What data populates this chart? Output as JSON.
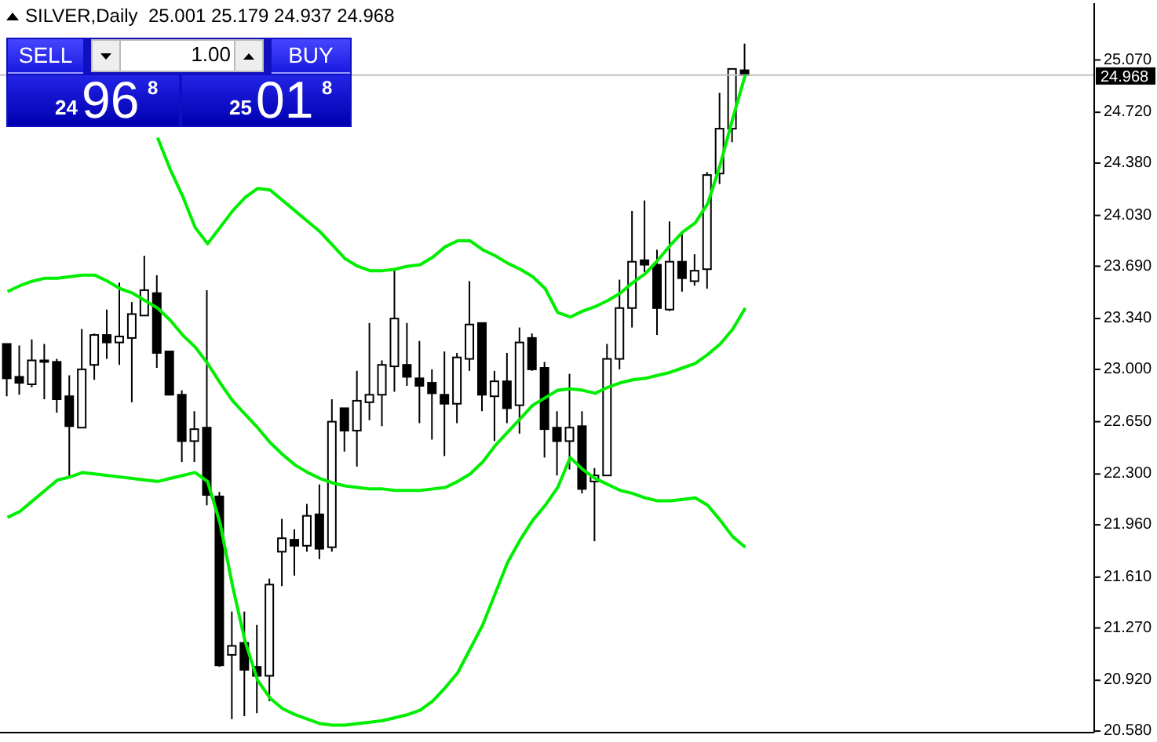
{
  "chart_data": {
    "type": "candlestick",
    "title": "SILVER,Daily  25.001 25.179 24.937 24.968",
    "annotations": [
      "SELL",
      "1.00",
      "BUY",
      "24",
      "96",
      "8",
      "25",
      "01",
      "8"
    ],
    "categories": [
      null,
      null,
      null,
      null,
      null,
      null,
      null,
      null,
      null,
      null,
      null,
      null,
      null,
      null,
      null,
      null,
      null,
      null,
      null,
      null,
      null,
      null,
      null,
      null,
      null,
      null,
      null,
      null,
      null,
      null,
      null,
      null,
      null,
      null,
      null,
      null,
      null,
      null,
      null,
      null,
      null,
      null,
      null,
      null,
      null,
      null,
      null,
      null,
      null,
      null,
      null,
      null,
      null,
      null,
      null,
      null,
      null,
      null,
      null,
      null
    ],
    "ohlc": [
      [
        23.17,
        23.17,
        22.82,
        22.94
      ],
      [
        22.95,
        23.16,
        22.83,
        22.91
      ],
      [
        22.9,
        23.2,
        22.88,
        23.06
      ],
      [
        23.06,
        23.17,
        22.8,
        23.05
      ],
      [
        23.05,
        23.07,
        22.71,
        22.8
      ],
      [
        22.82,
        22.96,
        22.27,
        22.62
      ],
      [
        22.61,
        23.27,
        22.61,
        23.0
      ],
      [
        23.03,
        23.24,
        22.93,
        23.23
      ],
      [
        23.23,
        23.4,
        23.07,
        23.18
      ],
      [
        23.18,
        23.58,
        23.03,
        23.22
      ],
      [
        23.21,
        23.45,
        22.78,
        23.37
      ],
      [
        23.36,
        23.76,
        23.36,
        23.53
      ],
      [
        23.51,
        23.63,
        23.01,
        23.11
      ],
      [
        23.12,
        23.12,
        22.83,
        22.83
      ],
      [
        22.83,
        22.86,
        22.38,
        22.52
      ],
      [
        22.52,
        22.72,
        22.38,
        22.6
      ],
      [
        22.61,
        23.53,
        22.09,
        22.16
      ],
      [
        22.15,
        22.18,
        21.01,
        21.02
      ],
      [
        21.09,
        21.38,
        20.66,
        21.15
      ],
      [
        21.17,
        21.38,
        20.68,
        20.99
      ],
      [
        21.01,
        21.29,
        20.7,
        20.95
      ],
      [
        20.95,
        21.6,
        20.78,
        21.56
      ],
      [
        21.78,
        22.0,
        21.55,
        21.87
      ],
      [
        21.86,
        21.93,
        21.62,
        21.82
      ],
      [
        21.82,
        22.1,
        21.78,
        22.02
      ],
      [
        22.03,
        22.23,
        21.73,
        21.8
      ],
      [
        21.81,
        22.8,
        21.78,
        22.65
      ],
      [
        22.74,
        22.74,
        22.45,
        22.59
      ],
      [
        22.59,
        22.99,
        22.35,
        22.79
      ],
      [
        22.78,
        23.31,
        22.66,
        22.83
      ],
      [
        22.83,
        23.06,
        22.62,
        23.03
      ],
      [
        23.02,
        23.67,
        22.85,
        23.34
      ],
      [
        23.03,
        23.31,
        22.89,
        22.95
      ],
      [
        22.94,
        23.19,
        22.64,
        22.89
      ],
      [
        22.91,
        23.0,
        22.53,
        22.84
      ],
      [
        22.83,
        23.12,
        22.42,
        22.77
      ],
      [
        22.77,
        23.11,
        22.64,
        23.08
      ],
      [
        23.07,
        23.59,
        22.99,
        23.3
      ],
      [
        23.31,
        23.31,
        22.72,
        22.83
      ],
      [
        22.82,
        22.99,
        22.52,
        22.92
      ],
      [
        22.92,
        23.11,
        22.64,
        22.74
      ],
      [
        22.76,
        23.28,
        22.57,
        23.18
      ],
      [
        23.21,
        23.24,
        22.99,
        23.0
      ],
      [
        23.01,
        23.05,
        22.41,
        22.6
      ],
      [
        22.61,
        22.72,
        22.29,
        22.52
      ],
      [
        22.52,
        22.97,
        22.33,
        22.61
      ],
      [
        22.62,
        22.72,
        22.17,
        22.2
      ],
      [
        22.25,
        22.34,
        21.85,
        22.29
      ],
      [
        22.29,
        23.17,
        22.29,
        23.07
      ],
      [
        23.07,
        23.6,
        23.0,
        23.41
      ],
      [
        23.41,
        24.06,
        23.28,
        23.72
      ],
      [
        23.73,
        24.13,
        23.65,
        23.7
      ],
      [
        23.7,
        23.8,
        23.23,
        23.41
      ],
      [
        23.4,
        23.99,
        23.39,
        23.72
      ],
      [
        23.72,
        23.92,
        23.52,
        23.61
      ],
      [
        23.59,
        23.77,
        23.56,
        23.66
      ],
      [
        23.67,
        24.32,
        23.54,
        24.3
      ],
      [
        24.31,
        24.85,
        24.24,
        24.61
      ],
      [
        24.61,
        25.01,
        24.52,
        25.01
      ],
      [
        25.001,
        25.179,
        24.937,
        24.968
      ]
    ],
    "color": "#000000",
    "series": [
      {
        "type": "line",
        "color": "#00ee00",
        "values": [
          null,
          null,
          null,
          null,
          null,
          null,
          null,
          null,
          null,
          null,
          null,
          null,
          24.55,
          24.34,
          24.16,
          23.95,
          23.84,
          23.95,
          24.06,
          24.15,
          24.21,
          24.2,
          24.13,
          24.06,
          23.99,
          23.92,
          23.83,
          23.74,
          23.69,
          23.66,
          23.66,
          23.67,
          23.69,
          23.7,
          23.75,
          23.82,
          23.86,
          23.86,
          23.8,
          23.76,
          23.71,
          23.67,
          23.62,
          23.54,
          23.38,
          23.35,
          23.39,
          23.42,
          23.46,
          23.51,
          23.58,
          23.64,
          23.73,
          23.83,
          23.92,
          23.98,
          24.11,
          24.37,
          24.68,
          24.97
        ]
      },
      {
        "type": "line",
        "color": "#00ee00",
        "values": [
          23.52,
          23.56,
          23.59,
          23.61,
          23.61,
          23.62,
          23.63,
          23.63,
          23.59,
          23.54,
          23.51,
          23.46,
          23.41,
          23.33,
          23.23,
          23.15,
          23.04,
          22.91,
          22.79,
          22.7,
          22.61,
          22.51,
          22.43,
          22.36,
          22.31,
          22.27,
          22.24,
          22.22,
          22.21,
          22.2,
          22.2,
          22.19,
          22.19,
          22.19,
          22.2,
          22.21,
          22.25,
          22.3,
          22.38,
          22.49,
          22.58,
          22.67,
          22.76,
          22.81,
          22.86,
          22.87,
          22.86,
          22.84,
          22.88,
          22.91,
          22.93,
          22.94,
          22.96,
          22.98,
          23.01,
          23.04,
          23.1,
          23.17,
          23.27,
          23.41
        ]
      },
      {
        "type": "line",
        "color": "#00ee00",
        "values": [
          22.01,
          22.05,
          22.12,
          22.19,
          22.26,
          22.28,
          22.31,
          22.3,
          22.29,
          22.28,
          22.27,
          22.26,
          22.25,
          22.27,
          22.29,
          22.31,
          22.25,
          21.97,
          21.55,
          21.18,
          20.92,
          20.8,
          20.73,
          20.69,
          20.66,
          20.63,
          20.62,
          20.62,
          20.63,
          20.64,
          20.65,
          20.67,
          20.69,
          20.72,
          20.78,
          20.87,
          20.97,
          21.13,
          21.29,
          21.5,
          21.71,
          21.86,
          21.99,
          22.09,
          22.21,
          22.41,
          22.33,
          22.27,
          22.23,
          22.19,
          22.17,
          22.14,
          22.12,
          22.12,
          22.13,
          22.14,
          22.09,
          21.99,
          21.88,
          21.81
        ]
      }
    ],
    "ylim": [
      20.57,
      25.45
    ],
    "yticks": [
      {
        "value": 25.07,
        "label": "25.070"
      },
      {
        "value": 24.72,
        "label": "24.720"
      },
      {
        "value": 24.38,
        "label": "24.380"
      },
      {
        "value": 24.03,
        "label": "24.030"
      },
      {
        "value": 23.69,
        "label": "23.690"
      },
      {
        "value": 23.34,
        "label": "23.340"
      },
      {
        "value": 23.0,
        "label": "23.000"
      },
      {
        "value": 22.65,
        "label": "22.650"
      },
      {
        "value": 22.3,
        "label": "22.300"
      },
      {
        "value": 21.96,
        "label": "21.960"
      },
      {
        "value": 21.61,
        "label": "21.610"
      },
      {
        "value": 21.27,
        "label": "21.270"
      },
      {
        "value": 20.92,
        "label": "20.920"
      },
      {
        "value": 20.58,
        "label": "20.580"
      }
    ],
    "ref_lines": [
      {
        "axis": "y",
        "value": 24.968,
        "label": "24.968",
        "color": "#c0c0c0"
      }
    ],
    "tick_labels": "y",
    "grid": false
  }
}
